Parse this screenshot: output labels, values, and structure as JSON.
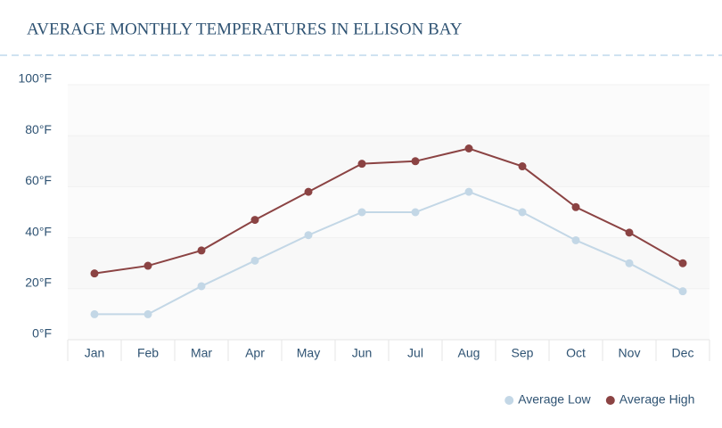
{
  "chart_data": {
    "type": "line",
    "title": "AVERAGE MONTHLY TEMPERATURES IN ELLISON BAY",
    "categories": [
      "Jan",
      "Feb",
      "Mar",
      "Apr",
      "May",
      "Jun",
      "Jul",
      "Aug",
      "Sep",
      "Oct",
      "Nov",
      "Dec"
    ],
    "series": [
      {
        "name": "Average Low",
        "color": "#c3d7e6",
        "values": [
          10,
          10,
          21,
          31,
          41,
          50,
          50,
          58,
          50,
          39,
          30,
          19
        ]
      },
      {
        "name": "Average High",
        "color": "#8b4343",
        "values": [
          26,
          29,
          35,
          47,
          58,
          69,
          70,
          75,
          68,
          52,
          42,
          30
        ]
      }
    ],
    "ylim": [
      0,
      100
    ],
    "yticks": [
      {
        "value": 0,
        "label": "0°F"
      },
      {
        "value": 20,
        "label": "20°F"
      },
      {
        "value": 40,
        "label": "40°F"
      },
      {
        "value": 60,
        "label": "60°F"
      },
      {
        "value": 80,
        "label": "80°F"
      },
      {
        "value": 100,
        "label": "100°F"
      }
    ],
    "grid": true,
    "legend": "bottom-right"
  }
}
